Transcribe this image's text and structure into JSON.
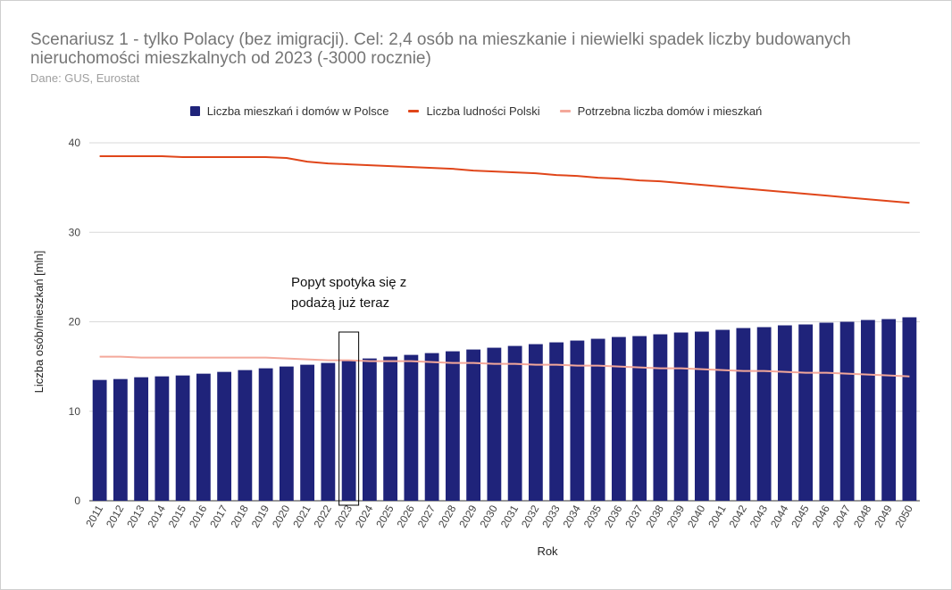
{
  "chart_data": {
    "type": "bar",
    "title": "Scenariusz 1 - tylko Polacy (bez imigracji). Cel: 2,4 osób na mieszkanie i niewielki spadek liczby budowanych nieruchomości mieszkalnych od 2023 (-3000 rocznie)",
    "subtitle": "Dane: GUS, Eurostat",
    "xlabel": "Rok",
    "ylabel": "Liczba osób/mieszkań [mln]",
    "ylim": [
      0,
      40
    ],
    "yticks": [
      "0",
      "10",
      "20",
      "30",
      "40"
    ],
    "grid": true,
    "legend_position": "top",
    "categories": [
      "2011",
      "2012",
      "2013",
      "2014",
      "2015",
      "2016",
      "2017",
      "2018",
      "2019",
      "2020",
      "2021",
      "2022",
      "2023",
      "2024",
      "2025",
      "2026",
      "2027",
      "2028",
      "2029",
      "2030",
      "2031",
      "2032",
      "2033",
      "2034",
      "2035",
      "2036",
      "2037",
      "2038",
      "2039",
      "2040",
      "2041",
      "2042",
      "2043",
      "2044",
      "2045",
      "2046",
      "2047",
      "2048",
      "2049",
      "2050"
    ],
    "series": [
      {
        "name": "Liczba mieszkań i domów w Polsce",
        "type": "bar",
        "color": "#1f237a",
        "values": [
          13.5,
          13.6,
          13.8,
          13.9,
          14.0,
          14.2,
          14.4,
          14.6,
          14.8,
          15.0,
          15.2,
          15.4,
          15.7,
          15.9,
          16.1,
          16.3,
          16.5,
          16.7,
          16.9,
          17.1,
          17.3,
          17.5,
          17.7,
          17.9,
          18.1,
          18.3,
          18.4,
          18.6,
          18.8,
          18.9,
          19.1,
          19.3,
          19.4,
          19.6,
          19.7,
          19.9,
          20.0,
          20.2,
          20.3,
          20.5
        ]
      },
      {
        "name": "Liczba ludności Polski",
        "type": "line",
        "color": "#e0461a",
        "values": [
          38.5,
          38.5,
          38.5,
          38.5,
          38.4,
          38.4,
          38.4,
          38.4,
          38.4,
          38.3,
          37.9,
          37.7,
          37.6,
          37.5,
          37.4,
          37.3,
          37.2,
          37.1,
          36.9,
          36.8,
          36.7,
          36.6,
          36.4,
          36.3,
          36.1,
          36.0,
          35.8,
          35.7,
          35.5,
          35.3,
          35.1,
          34.9,
          34.7,
          34.5,
          34.3,
          34.1,
          33.9,
          33.7,
          33.5,
          33.3
        ]
      },
      {
        "name": "Potrzebna liczba domów i mieszkań",
        "type": "line",
        "color": "#f4a89a",
        "values": [
          16.1,
          16.1,
          16.0,
          16.0,
          16.0,
          16.0,
          16.0,
          16.0,
          16.0,
          15.9,
          15.8,
          15.7,
          15.7,
          15.6,
          15.6,
          15.6,
          15.5,
          15.4,
          15.4,
          15.3,
          15.3,
          15.2,
          15.2,
          15.1,
          15.1,
          15.0,
          14.9,
          14.8,
          14.8,
          14.7,
          14.6,
          14.5,
          14.5,
          14.4,
          14.3,
          14.3,
          14.2,
          14.1,
          14.0,
          13.9
        ]
      }
    ],
    "annotation": {
      "text": "Popyt spotyka się z\npodażą już teraz",
      "highlight_category": "2023"
    }
  }
}
